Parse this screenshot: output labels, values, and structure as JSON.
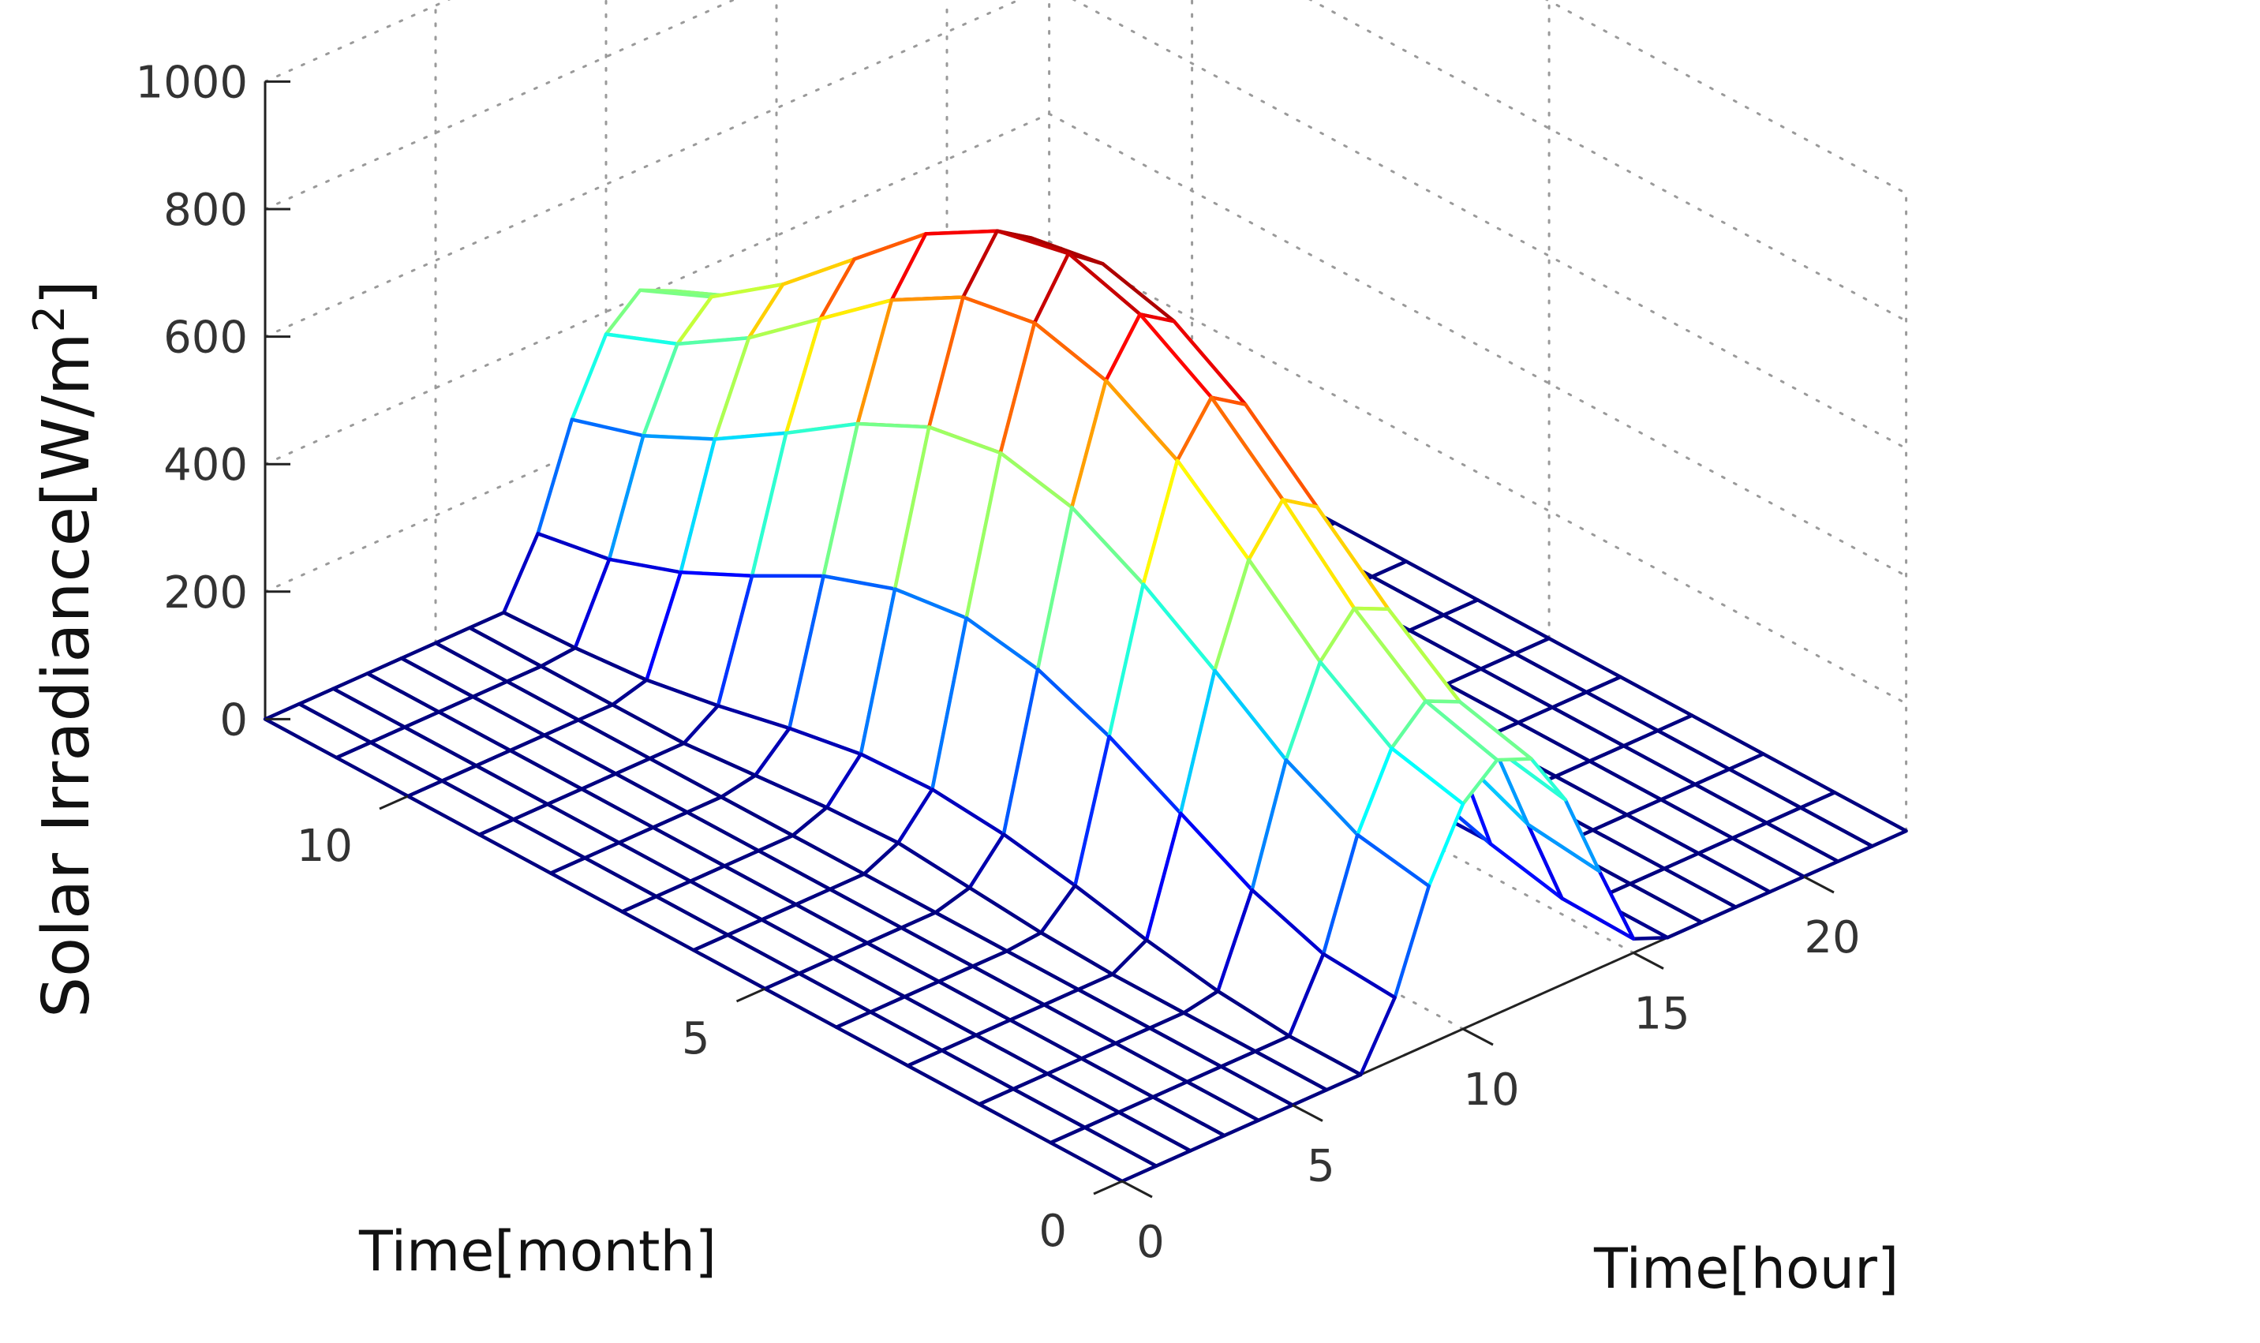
{
  "chart_data": {
    "type": "surface",
    "title": "",
    "xlabel": "Time[month]",
    "ylabel": "Time[hour]",
    "zlabel_main": "Solar Irradiance[W/m",
    "zlabel_sup": "2",
    "zlabel_close": "]",
    "xlim": [
      0,
      12
    ],
    "ylim": [
      0,
      23
    ],
    "zlim": [
      0,
      1000
    ],
    "xticks": [
      0,
      5,
      10
    ],
    "xtick_labels": [
      "0",
      "5",
      "10"
    ],
    "yticks": [
      0,
      5,
      10,
      15,
      20
    ],
    "ytick_labels": [
      "0",
      "5",
      "10",
      "15",
      "20"
    ],
    "zticks": [
      0,
      200,
      400,
      600,
      800,
      1000
    ],
    "ztick_labels": [
      "0",
      "200",
      "400",
      "600",
      "800",
      "1000"
    ],
    "grid": true,
    "colormap": "jet",
    "months": [
      0,
      1,
      2,
      3,
      4,
      5,
      6,
      7,
      8,
      9,
      10,
      11,
      12
    ],
    "hours": [
      0,
      1,
      2,
      3,
      4,
      5,
      6,
      7,
      8,
      9,
      10,
      11,
      12,
      13,
      14,
      15,
      16,
      17,
      18,
      19,
      20,
      21,
      22,
      23
    ],
    "irradiance": [
      [
        0,
        0,
        0,
        0,
        0,
        0,
        0,
        0,
        97,
        248,
        353,
        398,
        376,
        288,
        152,
        22,
        0,
        0,
        0,
        0,
        0,
        0,
        0,
        0
      ],
      [
        0,
        0,
        0,
        0,
        0,
        0,
        0,
        0,
        105,
        268,
        380,
        430,
        405,
        310,
        165,
        25,
        0,
        0,
        0,
        0,
        0,
        0,
        0,
        0
      ],
      [
        0,
        0,
        0,
        0,
        0,
        0,
        0,
        10,
        145,
        325,
        455,
        515,
        490,
        380,
        215,
        50,
        0,
        0,
        0,
        0,
        0,
        0,
        0,
        0
      ],
      [
        0,
        0,
        0,
        0,
        0,
        0,
        0,
        30,
        205,
        405,
        555,
        625,
        590,
        460,
        275,
        85,
        0,
        0,
        0,
        0,
        0,
        0,
        0,
        0
      ],
      [
        0,
        0,
        0,
        0,
        0,
        0,
        5,
        55,
        265,
        480,
        650,
        725,
        690,
        545,
        335,
        120,
        5,
        0,
        0,
        0,
        0,
        0,
        0,
        0
      ],
      [
        0,
        0,
        0,
        0,
        0,
        0,
        15,
        75,
        310,
        540,
        715,
        795,
        760,
        600,
        380,
        145,
        10,
        0,
        0,
        0,
        0,
        0,
        0,
        0
      ],
      [
        0,
        0,
        0,
        0,
        0,
        0,
        25,
        85,
        330,
        565,
        745,
        830,
        790,
        630,
        400,
        160,
        15,
        0,
        0,
        0,
        0,
        0,
        0,
        0
      ],
      [
        0,
        0,
        0,
        0,
        0,
        0,
        20,
        80,
        315,
        545,
        725,
        805,
        770,
        610,
        385,
        150,
        10,
        0,
        0,
        0,
        0,
        0,
        0,
        0
      ],
      [
        0,
        0,
        0,
        0,
        0,
        0,
        10,
        60,
        275,
        490,
        660,
        740,
        700,
        555,
        340,
        125,
        5,
        0,
        0,
        0,
        0,
        0,
        0,
        0
      ],
      [
        0,
        0,
        0,
        0,
        0,
        0,
        0,
        35,
        215,
        415,
        570,
        640,
        605,
        470,
        280,
        90,
        0,
        0,
        0,
        0,
        0,
        0,
        0,
        0
      ],
      [
        0,
        0,
        0,
        0,
        0,
        0,
        0,
        15,
        160,
        345,
        480,
        540,
        510,
        395,
        225,
        55,
        0,
        0,
        0,
        0,
        0,
        0,
        0,
        0
      ],
      [
        0,
        0,
        0,
        0,
        0,
        0,
        0,
        5,
        120,
        290,
        410,
        460,
        435,
        330,
        180,
        35,
        0,
        0,
        0,
        0,
        0,
        0,
        0,
        0
      ],
      [
        0,
        0,
        0,
        0,
        0,
        0,
        0,
        0,
        100,
        255,
        365,
        410,
        385,
        295,
        155,
        25,
        0,
        0,
        0,
        0,
        0,
        0,
        0,
        0
      ]
    ]
  }
}
